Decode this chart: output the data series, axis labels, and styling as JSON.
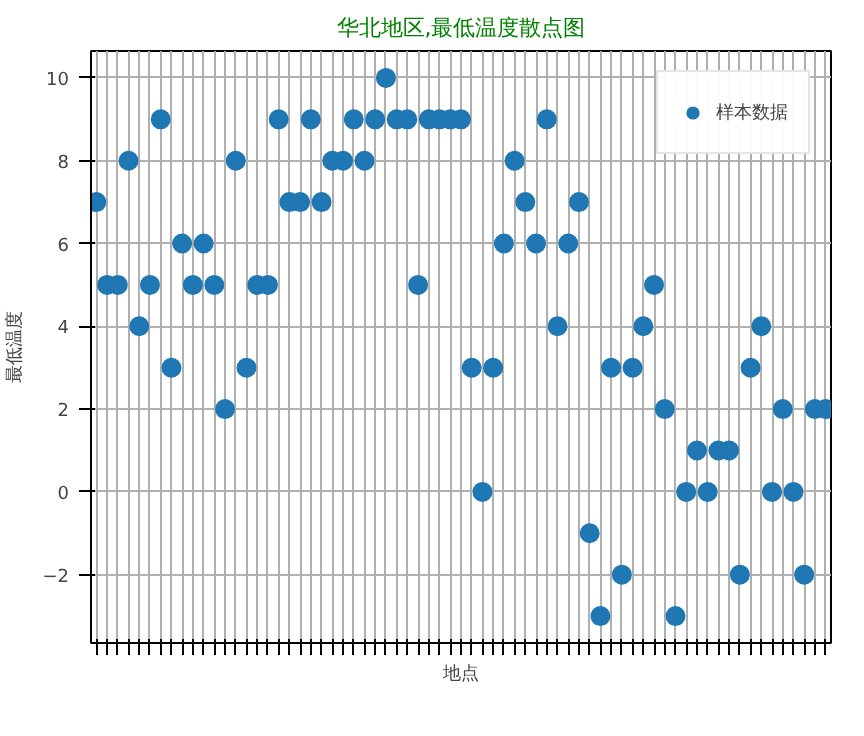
{
  "chart_data": {
    "type": "scatter",
    "title": "华北地区,最低温度散点图",
    "xlabel": "地点",
    "ylabel": "最低温度",
    "categories": [
      null,
      null,
      null,
      null,
      null,
      null,
      null,
      null,
      null,
      null,
      null,
      null,
      null,
      null,
      null,
      null,
      null,
      null,
      null,
      null,
      null,
      null,
      null,
      null,
      null,
      null,
      null,
      null,
      null,
      null,
      null,
      null,
      null,
      null,
      null,
      null,
      null,
      null,
      null,
      null,
      null,
      null,
      null,
      null,
      null,
      null,
      null,
      null,
      null,
      null,
      null,
      null,
      null,
      null,
      null,
      null,
      null,
      null,
      null,
      null,
      null,
      null,
      null,
      null,
      null,
      null,
      null,
      null,
      null
    ],
    "series": [
      {
        "name": "样本数据",
        "color": "#1f77b4",
        "values": [
          7,
          5,
          5,
          8,
          4,
          5,
          9,
          3,
          6,
          5,
          6,
          5,
          2,
          8,
          3,
          5,
          5,
          9,
          7,
          7,
          9,
          7,
          8,
          8,
          9,
          8,
          9,
          10,
          9,
          9,
          5,
          9,
          9,
          9,
          9,
          3,
          0,
          3,
          6,
          8,
          7,
          6,
          9,
          4,
          6,
          7,
          -1,
          -3,
          3,
          -2,
          3,
          4,
          5,
          2,
          -3,
          0,
          1,
          0,
          1,
          1,
          -2,
          3,
          4,
          0,
          2,
          0,
          -2,
          2,
          2
        ]
      }
    ],
    "ylim": [
      -3.65,
      10.65
    ],
    "yticks": [
      -2,
      0,
      2,
      4,
      6,
      8,
      10
    ],
    "grid": true,
    "legend": "top right",
    "marker": "circle"
  }
}
